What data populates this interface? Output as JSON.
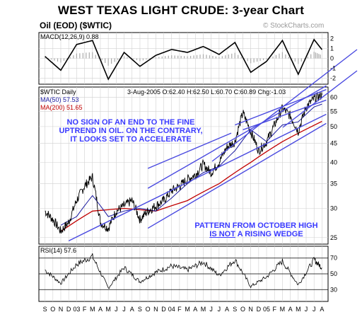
{
  "title": "WEST TEXAS LIGHT CRUDE: 3-year Chart",
  "subtitle": "Oil (EOD) ($WTIC)",
  "watermark": "© StockCharts.com",
  "macd_label": "MACD(12,26,9) 0.88",
  "price_label": "$WTIC Daily",
  "quote": "3-Aug-2005 O:62.40 H:62.50 L:60.70 C:60.89 Chg:-1.03",
  "ma50_label": "MA(50) 57.53",
  "ma200_label": "MA(200) 51.65",
  "rsi_label": "RSI(14) 57.6",
  "annotation_1": "NO SIGN OF AN END TO THE FINE UPTREND IN OIL. ON THE CONTRARY, IT LOOKS SET TO ACCELERATE",
  "annotation_2_line1": "PATTERN FROM OCTOBER HIGH",
  "annotation_2_line2a": "IS NOT",
  "annotation_2_line2b": " A RISING WEDGE",
  "colors": {
    "price": "#000000",
    "ma50": "#1a1aa0",
    "ma200": "#c00000",
    "trend": "#4a4ae0",
    "annotation": "#3a3aff",
    "grid": "#d0d0d0"
  },
  "chart_data": {
    "type": "line",
    "x_tick_labels": [
      "S",
      "O",
      "N",
      "D",
      "03",
      "F",
      "M",
      "A",
      "M",
      "J",
      "J",
      "A",
      "S",
      "O",
      "N",
      "D",
      "04",
      "F",
      "M",
      "A",
      "M",
      "J",
      "J",
      "A",
      "S",
      "O",
      "N",
      "D",
      "05",
      "F",
      "M",
      "A",
      "M",
      "J",
      "J",
      "A"
    ],
    "price_axis": {
      "scale": "log",
      "ticks": [
        25,
        30,
        35,
        40,
        45,
        50,
        55,
        60
      ],
      "ylim": [
        24,
        64
      ]
    },
    "macd_axis": {
      "ticks": [
        2,
        1,
        0,
        -1,
        -2
      ],
      "ylim": [
        -2.6,
        2.6
      ]
    },
    "rsi_axis": {
      "ticks": [
        70,
        50,
        30
      ],
      "ylim": [
        15,
        85
      ]
    },
    "series": [
      {
        "name": "$WTIC Daily",
        "x": [
          "2002-09",
          "2002-10",
          "2002-11",
          "2002-12",
          "2003-01",
          "2003-02",
          "2003-03",
          "2003-04",
          "2003-05",
          "2003-06",
          "2003-07",
          "2003-08",
          "2003-09",
          "2003-10",
          "2003-11",
          "2003-12",
          "2004-01",
          "2004-02",
          "2004-03",
          "2004-04",
          "2004-05",
          "2004-06",
          "2004-07",
          "2004-08",
          "2004-09",
          "2004-10",
          "2004-11",
          "2004-12",
          "2005-01",
          "2005-02",
          "2005-03",
          "2005-04",
          "2005-05",
          "2005-06",
          "2005-07",
          "2005-08"
        ],
        "values": [
          29.5,
          28.0,
          26.0,
          27.5,
          31.5,
          34.5,
          36.5,
          27.5,
          26.5,
          29.5,
          30.5,
          31.5,
          28.0,
          29.5,
          30.5,
          31.5,
          33.5,
          34.5,
          36.0,
          37.0,
          39.5,
          37.5,
          40.0,
          44.0,
          45.5,
          54.5,
          48.5,
          43.0,
          45.5,
          50.5,
          56.0,
          53.5,
          48.5,
          56.5,
          59.5,
          60.89
        ]
      },
      {
        "name": "MA(50) 57.53",
        "x": [
          "2002-11",
          "2003-01",
          "2003-03",
          "2003-05",
          "2003-07",
          "2003-09",
          "2003-11",
          "2004-01",
          "2004-03",
          "2004-05",
          "2004-07",
          "2004-09",
          "2004-11",
          "2005-01",
          "2005-03",
          "2005-05",
          "2005-07",
          "2005-08"
        ],
        "values": [
          27.0,
          28.5,
          32.5,
          28.5,
          29.5,
          30.0,
          29.5,
          32.0,
          35.0,
          37.5,
          39.0,
          43.0,
          49.0,
          45.5,
          50.5,
          51.5,
          56.5,
          57.53
        ]
      },
      {
        "name": "MA(200) 51.65",
        "x": [
          "2002-11",
          "2003-03",
          "2003-07",
          "2003-11",
          "2004-03",
          "2004-07",
          "2004-11",
          "2005-03",
          "2005-08"
        ],
        "values": [
          26.0,
          29.5,
          30.0,
          29.5,
          31.5,
          35.0,
          40.0,
          45.5,
          51.65
        ]
      },
      {
        "name": "MACD(12,26,9) 0.88",
        "x": [
          "2002-09",
          "2002-11",
          "2003-01",
          "2003-03",
          "2003-05",
          "2003-07",
          "2003-09",
          "2003-11",
          "2004-01",
          "2004-03",
          "2004-05",
          "2004-07",
          "2004-09",
          "2004-11",
          "2005-01",
          "2005-03",
          "2005-05",
          "2005-07",
          "2005-08"
        ],
        "values": [
          0.2,
          -1.2,
          1.4,
          1.8,
          -2.1,
          0.6,
          -0.8,
          0.3,
          0.9,
          0.6,
          1.2,
          0.4,
          1.6,
          -1.4,
          -0.3,
          1.8,
          -1.6,
          1.9,
          0.88
        ]
      },
      {
        "name": "RSI(14) 57.6",
        "x": [
          "2002-09",
          "2002-11",
          "2003-01",
          "2003-03",
          "2003-05",
          "2003-07",
          "2003-09",
          "2003-11",
          "2004-01",
          "2004-03",
          "2004-05",
          "2004-07",
          "2004-09",
          "2004-11",
          "2005-01",
          "2005-03",
          "2005-05",
          "2005-07",
          "2005-08"
        ],
        "values": [
          55,
          38,
          62,
          72,
          32,
          58,
          40,
          52,
          60,
          55,
          65,
          48,
          68,
          34,
          46,
          66,
          36,
          68,
          57.6
        ]
      }
    ],
    "trendlines": [
      {
        "from": [
          "2002-12",
          24.5
        ],
        "to": [
          "2005-08",
          54.0
        ]
      },
      {
        "from": [
          "2003-10",
          26.5
        ],
        "to": [
          "2005-08",
          51.0
        ]
      },
      {
        "from": [
          "2003-10",
          34.0
        ],
        "to": [
          "2005-08",
          64.5
        ]
      },
      {
        "from": [
          "2003-10",
          38.5
        ],
        "to": [
          "2004-08",
          48.0
        ]
      },
      {
        "from": [
          "2004-09",
          50.5
        ],
        "to": [
          "2005-08",
          63.0
        ]
      },
      {
        "from": [
          "2004-10",
          49.0
        ],
        "to": [
          "2005-08",
          59.0
        ]
      }
    ]
  }
}
